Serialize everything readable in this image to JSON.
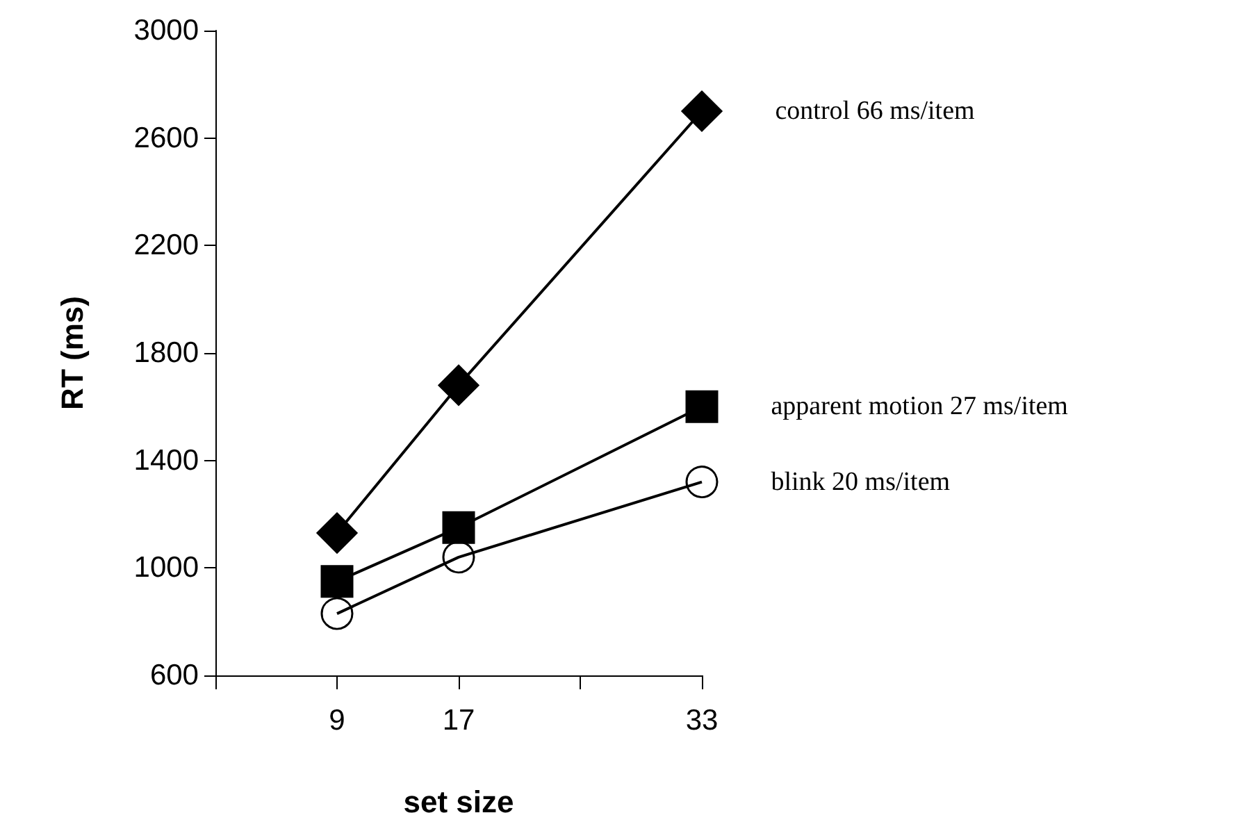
{
  "chart_data": {
    "type": "line",
    "xlabel": "set size",
    "ylabel": "RT (ms)",
    "categories": [
      null,
      "9",
      "17",
      null,
      "33"
    ],
    "series": [
      {
        "name": "control 66 ms/item",
        "color": "#000000",
        "marker": "diamond",
        "values": [
          null,
          1130,
          1680,
          null,
          2700
        ]
      },
      {
        "name": "apparent motion 27 ms/item",
        "color": "#000000",
        "marker": "square",
        "values": [
          null,
          950,
          1150,
          null,
          1600
        ]
      },
      {
        "name": "blink 20 ms/item",
        "color": "#000000",
        "marker": "circle",
        "values": [
          null,
          830,
          1040,
          null,
          1320
        ]
      }
    ],
    "ylim": [
      600,
      3000
    ],
    "yticks": [
      600,
      1000,
      1400,
      1800,
      2200,
      2600,
      3000
    ],
    "grid": false,
    "legend": false
  }
}
